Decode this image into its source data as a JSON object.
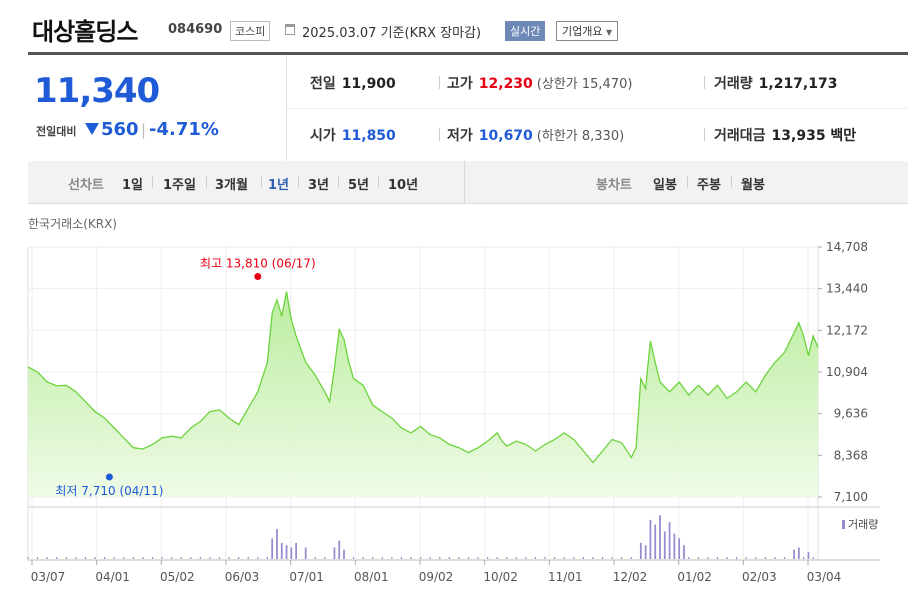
{
  "header": {
    "name": "대상홀딩스",
    "code": "084690",
    "market": "코스피",
    "date": "2025.03.07",
    "basis": "기준(KRX 장마감)",
    "realtime_label": "실시간",
    "corp_label": "기업개요"
  },
  "price": {
    "current": "11,340",
    "change_label": "전일대비",
    "change": "560",
    "change_pct": "-4.71%",
    "direction": "down"
  },
  "stats": {
    "prev_label": "전일",
    "prev": "11,900",
    "open_label": "시가",
    "open": "11,850",
    "high_label": "고가",
    "high": "12,230",
    "upper_limit": "(상한가 15,470)",
    "low_label": "저가",
    "low": "10,670",
    "lower_limit": "(하한가 8,330)",
    "volume_label": "거래량",
    "volume": "1,217,173",
    "amount_label": "거래대금",
    "amount": "13,935 백만"
  },
  "tabs": {
    "line_label": "선차트",
    "line_periods": [
      "1일",
      "1주일",
      "3개월",
      "1년",
      "3년",
      "5년",
      "10년"
    ],
    "line_active": "1년",
    "candle_label": "봉차트",
    "candle_periods": [
      "일봉",
      "주봉",
      "월봉"
    ]
  },
  "exchange": "한국거래소(KRX)",
  "colors": {
    "up": "#e60012",
    "down": "#1f5bd6",
    "line": "#6cd33c",
    "volume": "#9b8ccf"
  },
  "chart_data": {
    "type": "area",
    "x_ticks": [
      "03/07",
      "04/01",
      "05/02",
      "06/03",
      "07/01",
      "08/01",
      "09/02",
      "10/02",
      "11/01",
      "12/02",
      "01/02",
      "02/03",
      "03/04"
    ],
    "y_ticks": [
      "14,708",
      "13,440",
      "12,172",
      "10,904",
      "9,636",
      "8,368",
      "7,100"
    ],
    "ylim": [
      7100,
      14708
    ],
    "points": [
      [
        0,
        11060
      ],
      [
        2,
        10900
      ],
      [
        4,
        10600
      ],
      [
        6,
        10480
      ],
      [
        8,
        10500
      ],
      [
        10,
        10300
      ],
      [
        12,
        10000
      ],
      [
        14,
        9700
      ],
      [
        16,
        9500
      ],
      [
        18,
        9200
      ],
      [
        20,
        8900
      ],
      [
        22,
        8600
      ],
      [
        24,
        8560
      ],
      [
        26,
        8700
      ],
      [
        28,
        8900
      ],
      [
        30,
        8950
      ],
      [
        32,
        8900
      ],
      [
        34,
        9200
      ],
      [
        36,
        9400
      ],
      [
        38,
        9700
      ],
      [
        40,
        9750
      ],
      [
        42,
        9500
      ],
      [
        44,
        9300
      ],
      [
        46,
        9800
      ],
      [
        48,
        10300
      ],
      [
        50,
        11200
      ],
      [
        51,
        12700
      ],
      [
        52,
        13100
      ],
      [
        53,
        12600
      ],
      [
        54,
        13350
      ],
      [
        55,
        12500
      ],
      [
        56,
        12000
      ],
      [
        58,
        11200
      ],
      [
        60,
        10800
      ],
      [
        62,
        10300
      ],
      [
        63,
        10000
      ],
      [
        64,
        11000
      ],
      [
        65,
        12200
      ],
      [
        66,
        11900
      ],
      [
        67,
        11200
      ],
      [
        68,
        10700
      ],
      [
        70,
        10500
      ],
      [
        72,
        9900
      ],
      [
        74,
        9700
      ],
      [
        76,
        9500
      ],
      [
        78,
        9200
      ],
      [
        80,
        9050
      ],
      [
        82,
        9250
      ],
      [
        84,
        9000
      ],
      [
        86,
        8900
      ],
      [
        88,
        8700
      ],
      [
        90,
        8600
      ],
      [
        92,
        8450
      ],
      [
        94,
        8600
      ],
      [
        96,
        8800
      ],
      [
        98,
        9050
      ],
      [
        99,
        8800
      ],
      [
        100,
        8650
      ],
      [
        102,
        8800
      ],
      [
        104,
        8700
      ],
      [
        106,
        8500
      ],
      [
        108,
        8700
      ],
      [
        110,
        8850
      ],
      [
        112,
        9050
      ],
      [
        114,
        8850
      ],
      [
        116,
        8500
      ],
      [
        118,
        8150
      ],
      [
        120,
        8500
      ],
      [
        122,
        8850
      ],
      [
        124,
        8750
      ],
      [
        126,
        8300
      ],
      [
        127,
        8600
      ],
      [
        128,
        10700
      ],
      [
        129,
        10400
      ],
      [
        130,
        11850
      ],
      [
        131,
        11200
      ],
      [
        132,
        10600
      ],
      [
        134,
        10300
      ],
      [
        136,
        10600
      ],
      [
        138,
        10200
      ],
      [
        140,
        10500
      ],
      [
        142,
        10200
      ],
      [
        144,
        10500
      ],
      [
        146,
        10100
      ],
      [
        148,
        10300
      ],
      [
        150,
        10600
      ],
      [
        152,
        10300
      ],
      [
        154,
        10800
      ],
      [
        156,
        11200
      ],
      [
        158,
        11500
      ],
      [
        160,
        12100
      ],
      [
        161,
        12400
      ],
      [
        162,
        12000
      ],
      [
        163,
        11400
      ],
      [
        164,
        12000
      ],
      [
        165,
        11650
      ]
    ],
    "high_label": "최고 13,810 (06/17)",
    "low_label": "최저 7,710 (04/11)",
    "high_point": [
      48,
      13810
    ],
    "low_point": [
      17,
      7710
    ],
    "volume_label": "거래량",
    "volume_bars": [
      [
        51,
        0.45
      ],
      [
        52,
        0.65
      ],
      [
        53,
        0.35
      ],
      [
        54,
        0.3
      ],
      [
        55,
        0.25
      ],
      [
        56,
        0.35
      ],
      [
        58,
        0.25
      ],
      [
        64,
        0.25
      ],
      [
        65,
        0.4
      ],
      [
        66,
        0.2
      ],
      [
        128,
        0.35
      ],
      [
        129,
        0.3
      ],
      [
        130,
        0.85
      ],
      [
        131,
        0.75
      ],
      [
        132,
        0.95
      ],
      [
        133,
        0.6
      ],
      [
        134,
        0.8
      ],
      [
        135,
        0.55
      ],
      [
        136,
        0.45
      ],
      [
        137,
        0.3
      ],
      [
        160,
        0.2
      ],
      [
        161,
        0.25
      ],
      [
        163,
        0.15
      ]
    ]
  }
}
